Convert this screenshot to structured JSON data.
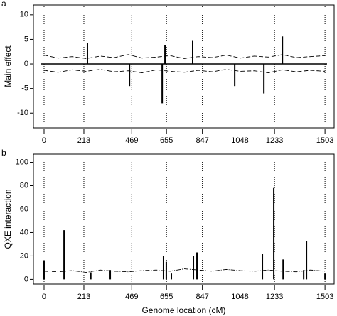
{
  "chart_data": [
    {
      "type": "spike",
      "panel_label": "a",
      "ylabel": "Main effect",
      "x": [
        232,
        457,
        632,
        647,
        795,
        1020,
        1176,
        1275
      ],
      "values": [
        4.3,
        -4.5,
        -8,
        3.8,
        4.7,
        -4.5,
        -6,
        5.6
      ],
      "color": "#000000",
      "xlim": [
        -57,
        1552
      ],
      "xticks": [
        0,
        213,
        469,
        655,
        847,
        1048,
        1233,
        1503
      ],
      "ylim": [
        -13,
        12
      ],
      "yticks": [
        -10,
        -5,
        0,
        5,
        10
      ],
      "boundaries": true,
      "zero_line": true,
      "threshold_x": [
        0,
        75,
        150,
        225,
        300,
        375,
        450,
        525,
        600,
        675,
        750,
        825,
        900,
        975,
        1050,
        1125,
        1200,
        1275,
        1350,
        1425,
        1503
      ],
      "thresholds": [
        {
          "dash": "6,3",
          "values": [
            1.8,
            1.2,
            1.5,
            1.1,
            1.6,
            1.3,
            1.9,
            1.2,
            1.4,
            1.7,
            1.1,
            1.5,
            1.3,
            1.8,
            1.2,
            1.6,
            1.4,
            1.9,
            1.3,
            1.5,
            1.7
          ]
        },
        {
          "dash": "6,3",
          "values": [
            -1.3,
            -1.7,
            -1.2,
            -1.5,
            -1.1,
            -1.6,
            -1.4,
            -1.8,
            -1.2,
            -1.5,
            -1.7,
            -1.3,
            -1.6,
            -1.1,
            -1.5,
            -1.4,
            -1.8,
            -1.2,
            -1.6,
            -1.3,
            -1.5
          ]
        }
      ]
    },
    {
      "type": "spike",
      "panel_label": "b",
      "ylabel": "QXE interaction",
      "xlabel": "Genome location (cM)",
      "x": [
        0,
        107,
        250,
        354,
        639,
        654,
        681,
        799,
        818,
        1168,
        1229,
        1279,
        1389,
        1404,
        1503
      ],
      "values": [
        16,
        42,
        6,
        8,
        20,
        15,
        5,
        20,
        23,
        22,
        78,
        17,
        8,
        33,
        5
      ],
      "color": "#000000",
      "xlim": [
        -57,
        1552
      ],
      "xticks": [
        0,
        213,
        469,
        655,
        847,
        1048,
        1233,
        1503
      ],
      "ylim": [
        -4,
        107
      ],
      "yticks": [
        0,
        20,
        40,
        60,
        80,
        100
      ],
      "boundaries": true,
      "zero_line": false,
      "threshold_x": [
        0,
        75,
        150,
        225,
        300,
        375,
        450,
        525,
        600,
        675,
        750,
        825,
        900,
        975,
        1050,
        1125,
        1200,
        1275,
        1350,
        1425,
        1503
      ],
      "thresholds": [
        {
          "dash": "6,2,1,2",
          "values": [
            7,
            6.5,
            7.5,
            6,
            8,
            7,
            6.5,
            7.5,
            8,
            7,
            9,
            8,
            7,
            8.5,
            7.5,
            7,
            8,
            7,
            6.5,
            8,
            7
          ]
        }
      ]
    }
  ]
}
